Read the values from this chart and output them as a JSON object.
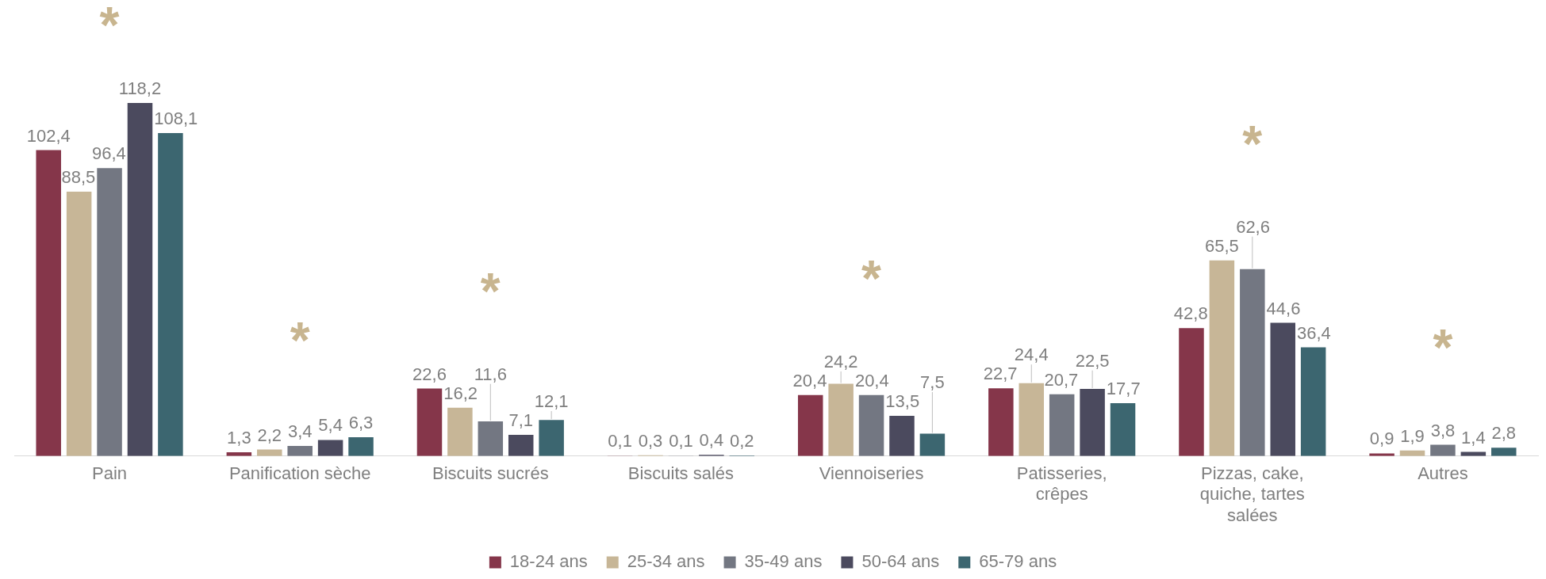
{
  "chart_data": {
    "type": "bar",
    "categories": [
      "Pain",
      "Panification sèche",
      "Biscuits sucrés",
      "Biscuits salés",
      "Viennoiseries",
      "Patisseries, crêpes",
      "Pizzas, cake, quiche, tartes salées",
      "Autres"
    ],
    "series": [
      {
        "name": "18-24 ans",
        "color": "#85364a",
        "values": [
          102.4,
          1.3,
          22.6,
          0.1,
          20.4,
          22.7,
          42.8,
          0.9
        ],
        "value_labels": [
          "102,4",
          "1,3",
          "22,6",
          "0,1",
          "20,4",
          "22,7",
          "42,8",
          "0,9"
        ]
      },
      {
        "name": "25-34 ans",
        "color": "#c7b697",
        "values": [
          88.5,
          2.2,
          16.2,
          0.3,
          24.2,
          24.4,
          65.5,
          1.9
        ],
        "value_labels": [
          "88,5",
          "2,2",
          "16,2",
          "0,3",
          "24,2",
          "24,4",
          "65,5",
          "1,9"
        ]
      },
      {
        "name": "35-49 ans",
        "color": "#737782",
        "values": [
          96.4,
          3.4,
          11.6,
          0.1,
          20.4,
          20.7,
          62.6,
          3.8
        ],
        "value_labels": [
          "96,4",
          "3,4",
          "11,6",
          "0,1",
          "20,4",
          "20,7",
          "62,6",
          "3,8"
        ]
      },
      {
        "name": "50-64 ans",
        "color": "#4b4a5e",
        "values": [
          118.2,
          5.4,
          7.1,
          0.4,
          13.5,
          22.5,
          44.6,
          1.4
        ],
        "value_labels": [
          "118,2",
          "5,4",
          "7,1",
          "0,4",
          "13,5",
          "22,5",
          "44,6",
          "1,4"
        ]
      },
      {
        "name": "65-79 ans",
        "color": "#3c6670",
        "values": [
          108.1,
          6.3,
          12.1,
          0.2,
          7.5,
          17.7,
          36.4,
          2.8
        ],
        "value_labels": [
          "108,1",
          "6,3",
          "12,1",
          "0,2",
          "7,5",
          "17,7",
          "36,4",
          "2,8"
        ]
      }
    ],
    "relative": false,
    "annotations": [
      {
        "text": "*",
        "x": "Pain",
        "y": 96.4
      },
      {
        "text": "*",
        "x": "Panification sèche",
        "y": 3.4
      },
      {
        "text": "*",
        "x": "Biscuits sucrés",
        "y": 11.6
      },
      {
        "text": "*",
        "x": "Viennoiseries",
        "y": 20.4
      },
      {
        "text": "*",
        "x": "Pizzas, cake, quiche, tartes salées",
        "y": 62.6
      },
      {
        "text": "*",
        "x": "Autres",
        "y": 3.8
      }
    ],
    "legend": "bottom",
    "grid": false
  }
}
